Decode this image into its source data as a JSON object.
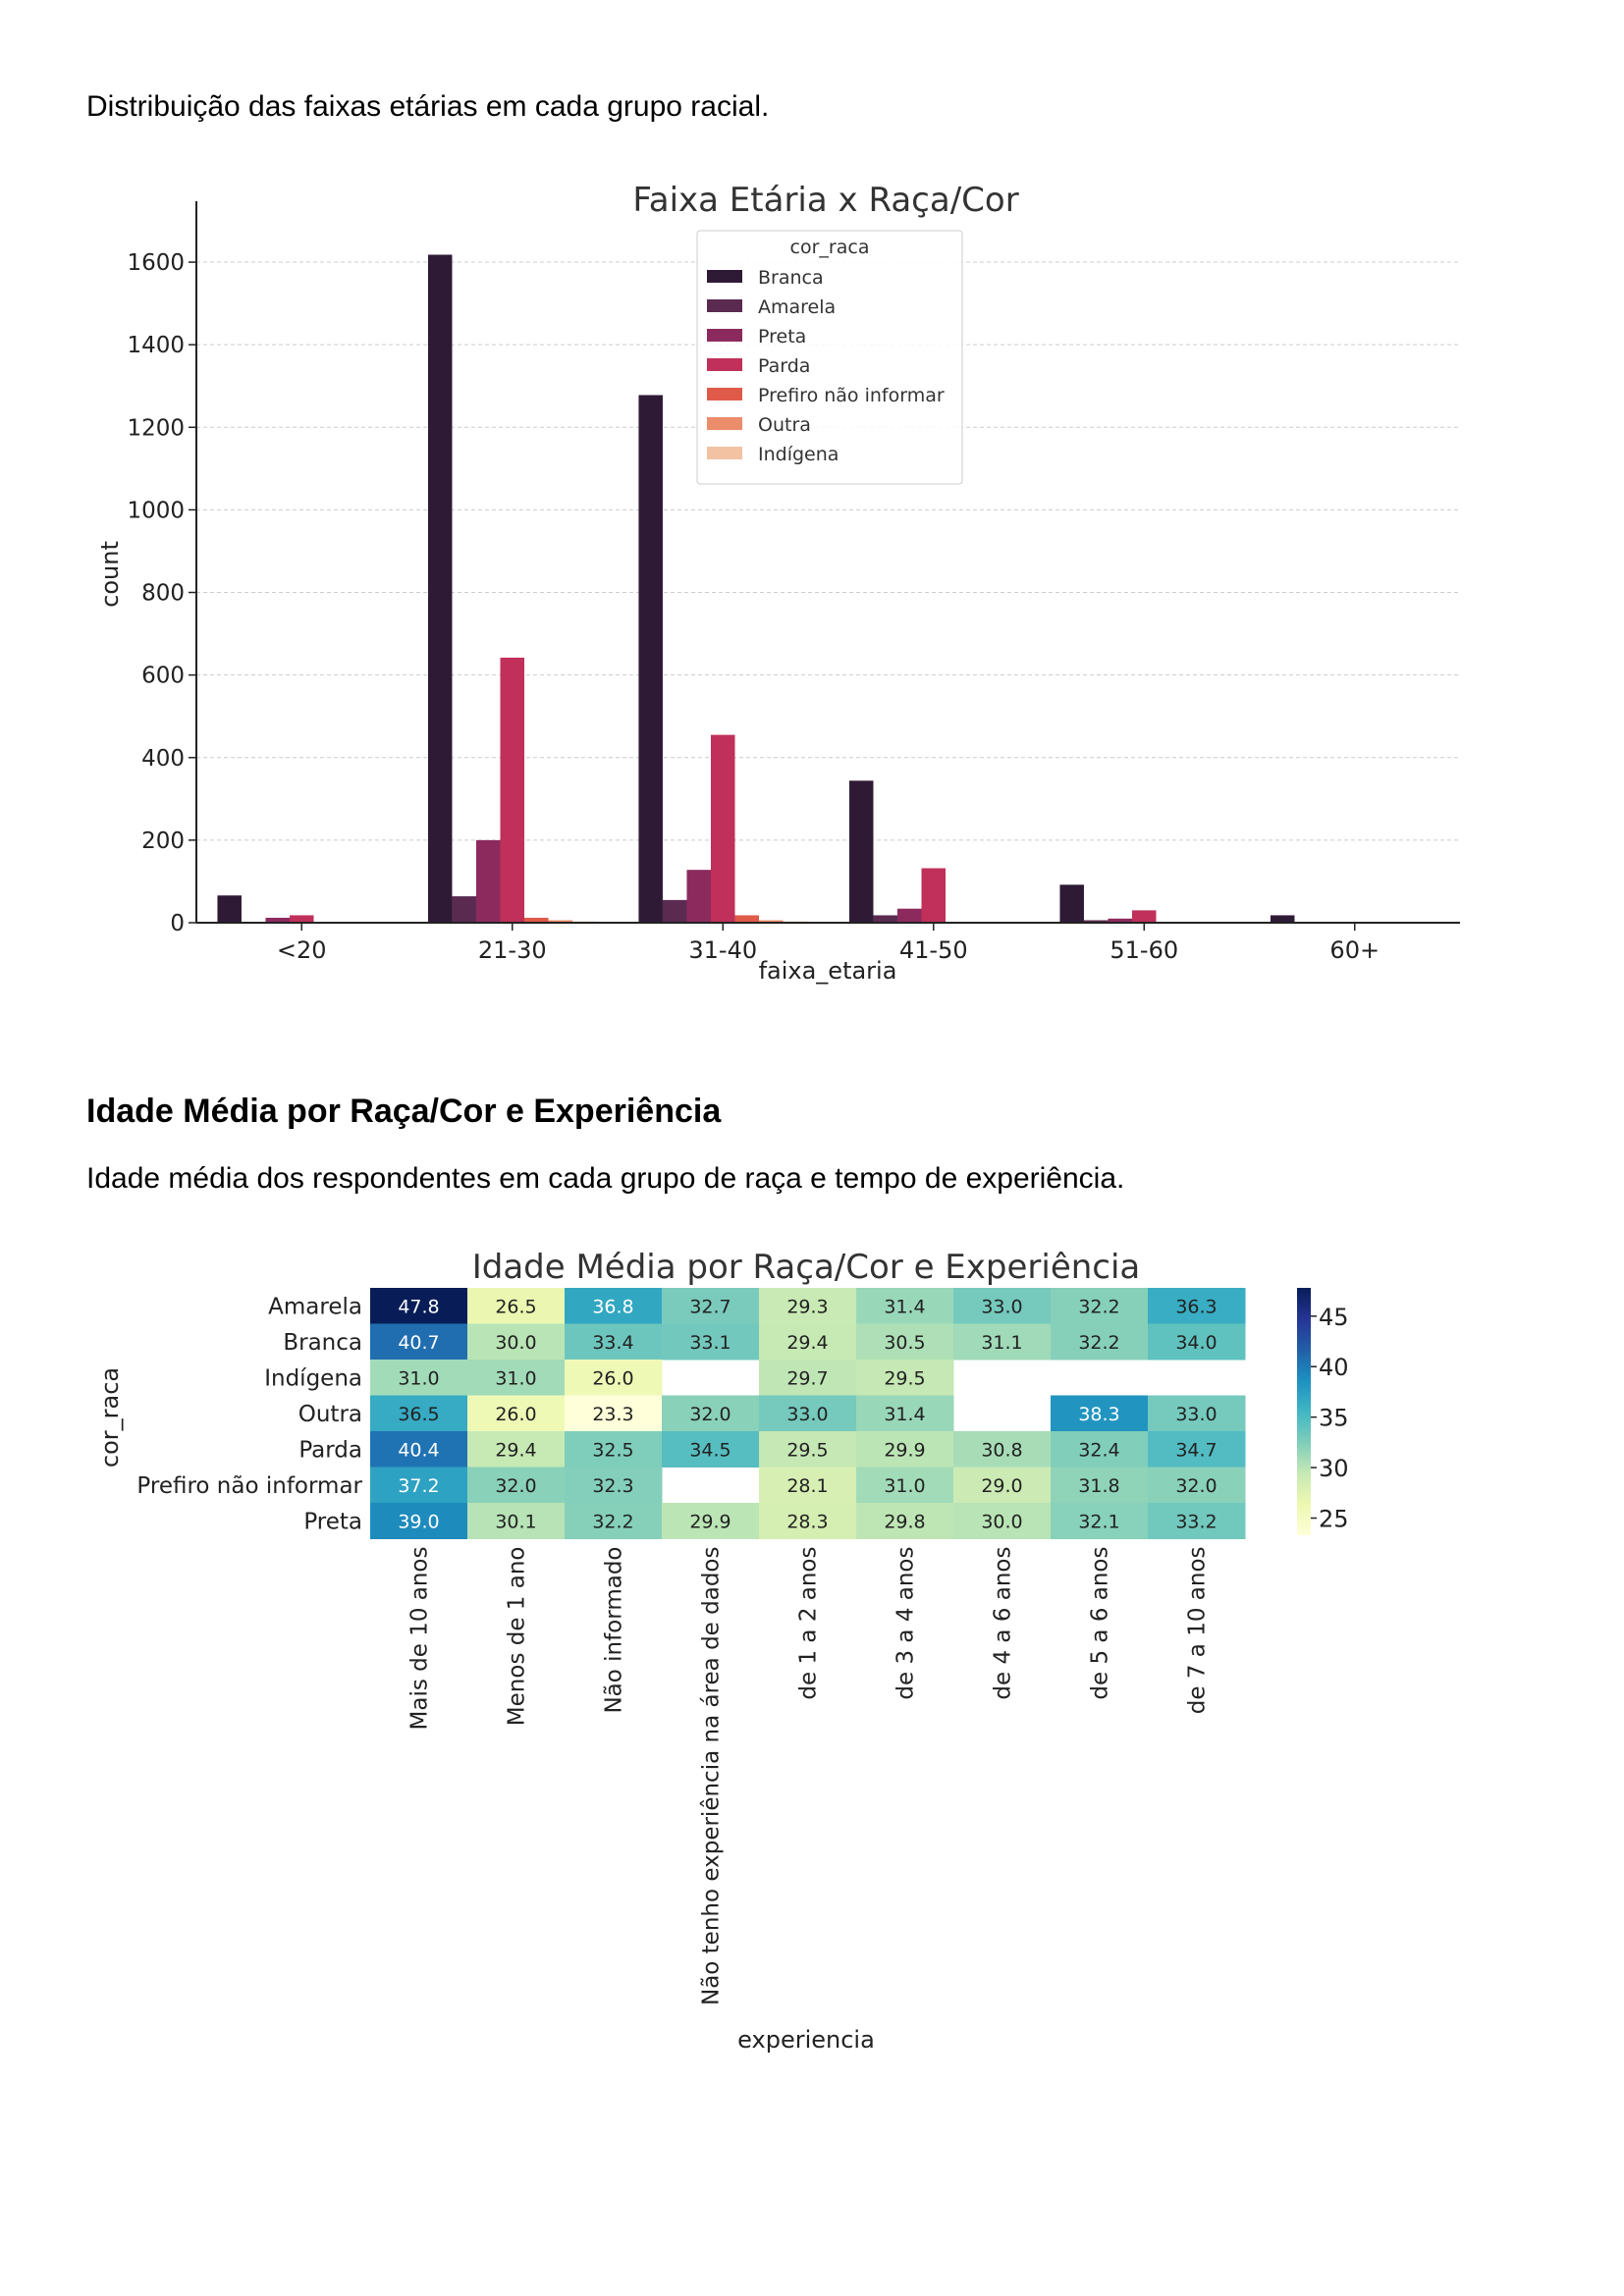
{
  "doc": {
    "intro": "Distribuição das faixas etárias em cada grupo racial.",
    "heading": "Idade Média por Raça/Cor e Experiência",
    "heading_desc": "Idade média dos respondentes em cada grupo de raça e tempo de experiência."
  },
  "chart_data": [
    {
      "type": "bar",
      "title": "Faixa Etária x Raça/Cor",
      "xlabel": "faixa_etaria",
      "ylabel": "count",
      "ylim": [
        0,
        1700
      ],
      "yticks": [
        0,
        200,
        400,
        600,
        800,
        1000,
        1200,
        1400,
        1600
      ],
      "grid": true,
      "legend_title": "cor_raca",
      "legend_position": "top-center",
      "categories": [
        "<20",
        "21-30",
        "31-40",
        "41-50",
        "51-60",
        "60+"
      ],
      "series": [
        {
          "name": "Branca",
          "color": "#2f1a36",
          "values": [
            66,
            1618,
            1278,
            344,
            92,
            18
          ]
        },
        {
          "name": "Amarela",
          "color": "#5a2a50",
          "values": [
            0,
            64,
            55,
            18,
            6,
            0
          ]
        },
        {
          "name": "Preta",
          "color": "#8c2a5e",
          "values": [
            12,
            200,
            128,
            34,
            10,
            0
          ]
        },
        {
          "name": "Parda",
          "color": "#c0305a",
          "values": [
            18,
            642,
            455,
            132,
            30,
            0
          ]
        },
        {
          "name": "Prefiro não informar",
          "color": "#e05a4a",
          "values": [
            0,
            12,
            18,
            0,
            0,
            0
          ]
        },
        {
          "name": "Outra",
          "color": "#eb8c6a",
          "values": [
            0,
            6,
            6,
            0,
            0,
            0
          ]
        },
        {
          "name": "Indígena",
          "color": "#f2c2a2",
          "values": [
            0,
            3,
            3,
            0,
            0,
            0
          ]
        }
      ]
    },
    {
      "type": "heatmap",
      "title": "Idade Média por Raça/Cor e Experiência",
      "xlabel": "experiencia",
      "ylabel": "cor_raca",
      "rows": [
        "Amarela",
        "Branca",
        "Indígena",
        "Outra",
        "Parda",
        "Prefiro não informar",
        "Preta"
      ],
      "columns": [
        "Mais de 10 anos",
        "Menos de 1 ano",
        "Não informado",
        "Não tenho experiência na área de dados",
        "de 1 a 2 anos",
        "de 3 a 4 anos",
        "de 4 a 6 anos",
        "de 5 a 6 anos",
        "de 7 a 10 anos"
      ],
      "values": [
        [
          47.8,
          26.5,
          36.8,
          32.7,
          29.3,
          31.4,
          33.0,
          32.2,
          36.3
        ],
        [
          40.7,
          30.0,
          33.4,
          33.1,
          29.4,
          30.5,
          31.1,
          32.2,
          34.0
        ],
        [
          31.0,
          31.0,
          26.0,
          null,
          29.7,
          29.5,
          null,
          null,
          null
        ],
        [
          36.5,
          26.0,
          23.3,
          32.0,
          33.0,
          31.4,
          null,
          38.3,
          33.0
        ],
        [
          40.4,
          29.4,
          32.5,
          34.5,
          29.5,
          29.9,
          30.8,
          32.4,
          34.7
        ],
        [
          37.2,
          32.0,
          32.3,
          null,
          28.1,
          31.0,
          29.0,
          31.8,
          32.0
        ],
        [
          39.0,
          30.1,
          32.2,
          29.9,
          28.3,
          29.8,
          30.0,
          32.1,
          33.2
        ]
      ],
      "colorbar": {
        "min": 23.3,
        "max": 47.8,
        "ticks": [
          25,
          30,
          35,
          40,
          45
        ],
        "colormap": "YlGnBu"
      }
    }
  ]
}
